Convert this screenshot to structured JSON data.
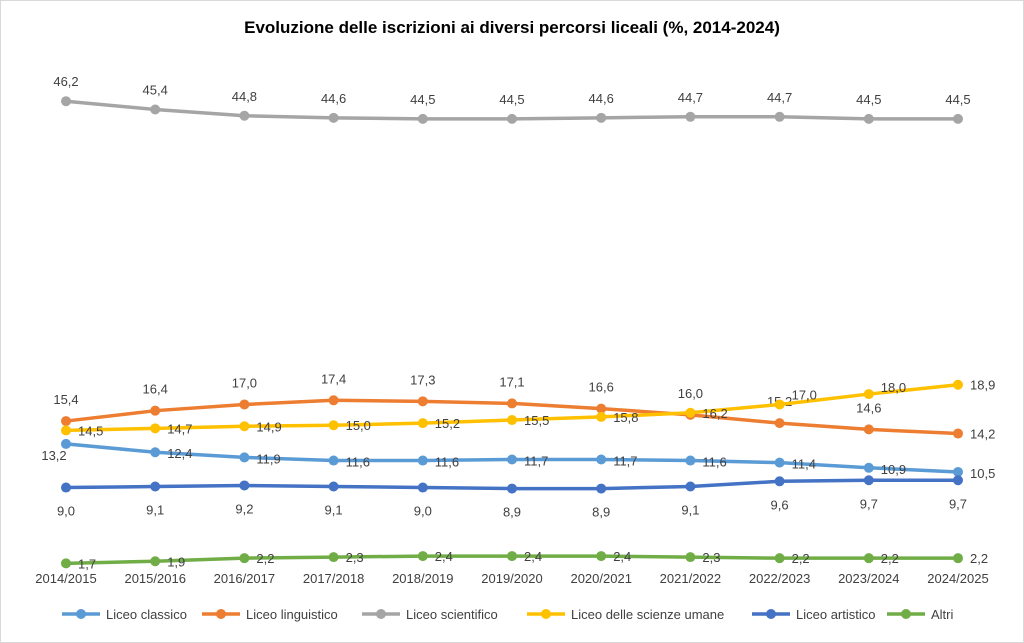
{
  "chart_data": {
    "type": "line",
    "title": "Evoluzione delle iscrizioni ai diversi percorsi liceali (%, 2014-2024)",
    "xlabel": "",
    "ylabel": "",
    "categories": [
      "2014/2015",
      "2015/2016",
      "2016/2017",
      "2017/2018",
      "2018/2019",
      "2019/2020",
      "2020/2021",
      "2021/2022",
      "2022/2023",
      "2023/2024",
      "2024/2025"
    ],
    "ylim": [
      0,
      50
    ],
    "grid": false,
    "legend_position": "bottom",
    "series": [
      {
        "name": "Liceo classico",
        "color": "#5b9bd5",
        "values": [
          13.2,
          12.4,
          11.9,
          11.6,
          11.6,
          11.7,
          11.7,
          11.6,
          11.4,
          10.9,
          10.5
        ],
        "labels": [
          "13,2",
          "12,4",
          "11,9",
          "11,6",
          "11,6",
          "11,7",
          "11,7",
          "11,6",
          "11,4",
          "10,9",
          "10,5"
        ]
      },
      {
        "name": "Liceo linguistico",
        "color": "#ed7d31",
        "values": [
          15.4,
          16.4,
          17.0,
          17.4,
          17.3,
          17.1,
          16.6,
          16.0,
          15.2,
          14.6,
          14.2
        ],
        "labels": [
          "15,4",
          "16,4",
          "17,0",
          "17,4",
          "17,3",
          "17,1",
          "16,6",
          "16,0",
          "15,2",
          "14,6",
          "14,2"
        ]
      },
      {
        "name": "Liceo scientifico",
        "color": "#a5a5a5",
        "values": [
          46.2,
          45.4,
          44.8,
          44.6,
          44.5,
          44.5,
          44.6,
          44.7,
          44.7,
          44.5,
          44.5
        ],
        "labels": [
          "46,2",
          "45,4",
          "44,8",
          "44,6",
          "44,5",
          "44,5",
          "44,6",
          "44,7",
          "44,7",
          "44,5",
          "44,5"
        ]
      },
      {
        "name": "Liceo delle scienze umane",
        "color": "#ffc000",
        "values": [
          14.5,
          14.7,
          14.9,
          15.0,
          15.2,
          15.5,
          15.8,
          16.2,
          17.0,
          18.0,
          18.9
        ],
        "labels": [
          "14,5",
          "14,7",
          "14,9",
          "15,0",
          "15,2",
          "15,5",
          "15,8",
          "16,2",
          "17,0",
          "18,0",
          "18,9"
        ]
      },
      {
        "name": "Liceo artistico",
        "color": "#4472c4",
        "values": [
          9.0,
          9.1,
          9.2,
          9.1,
          9.0,
          8.9,
          8.9,
          9.1,
          9.6,
          9.7,
          9.7
        ],
        "labels": [
          "9,0",
          "9,1",
          "9,2",
          "9,1",
          "9,0",
          "8,9",
          "8,9",
          "9,1",
          "9,6",
          "9,7",
          "9,7"
        ]
      },
      {
        "name": "Altri",
        "color": "#70ad47",
        "values": [
          1.7,
          1.9,
          2.2,
          2.3,
          2.4,
          2.4,
          2.4,
          2.3,
          2.2,
          2.2,
          2.2
        ],
        "labels": [
          "1,7",
          "1,9",
          "2,2",
          "2,3",
          "2,4",
          "2,4",
          "2,4",
          "2,3",
          "2,2",
          "2,2",
          "2,2"
        ]
      }
    ]
  }
}
